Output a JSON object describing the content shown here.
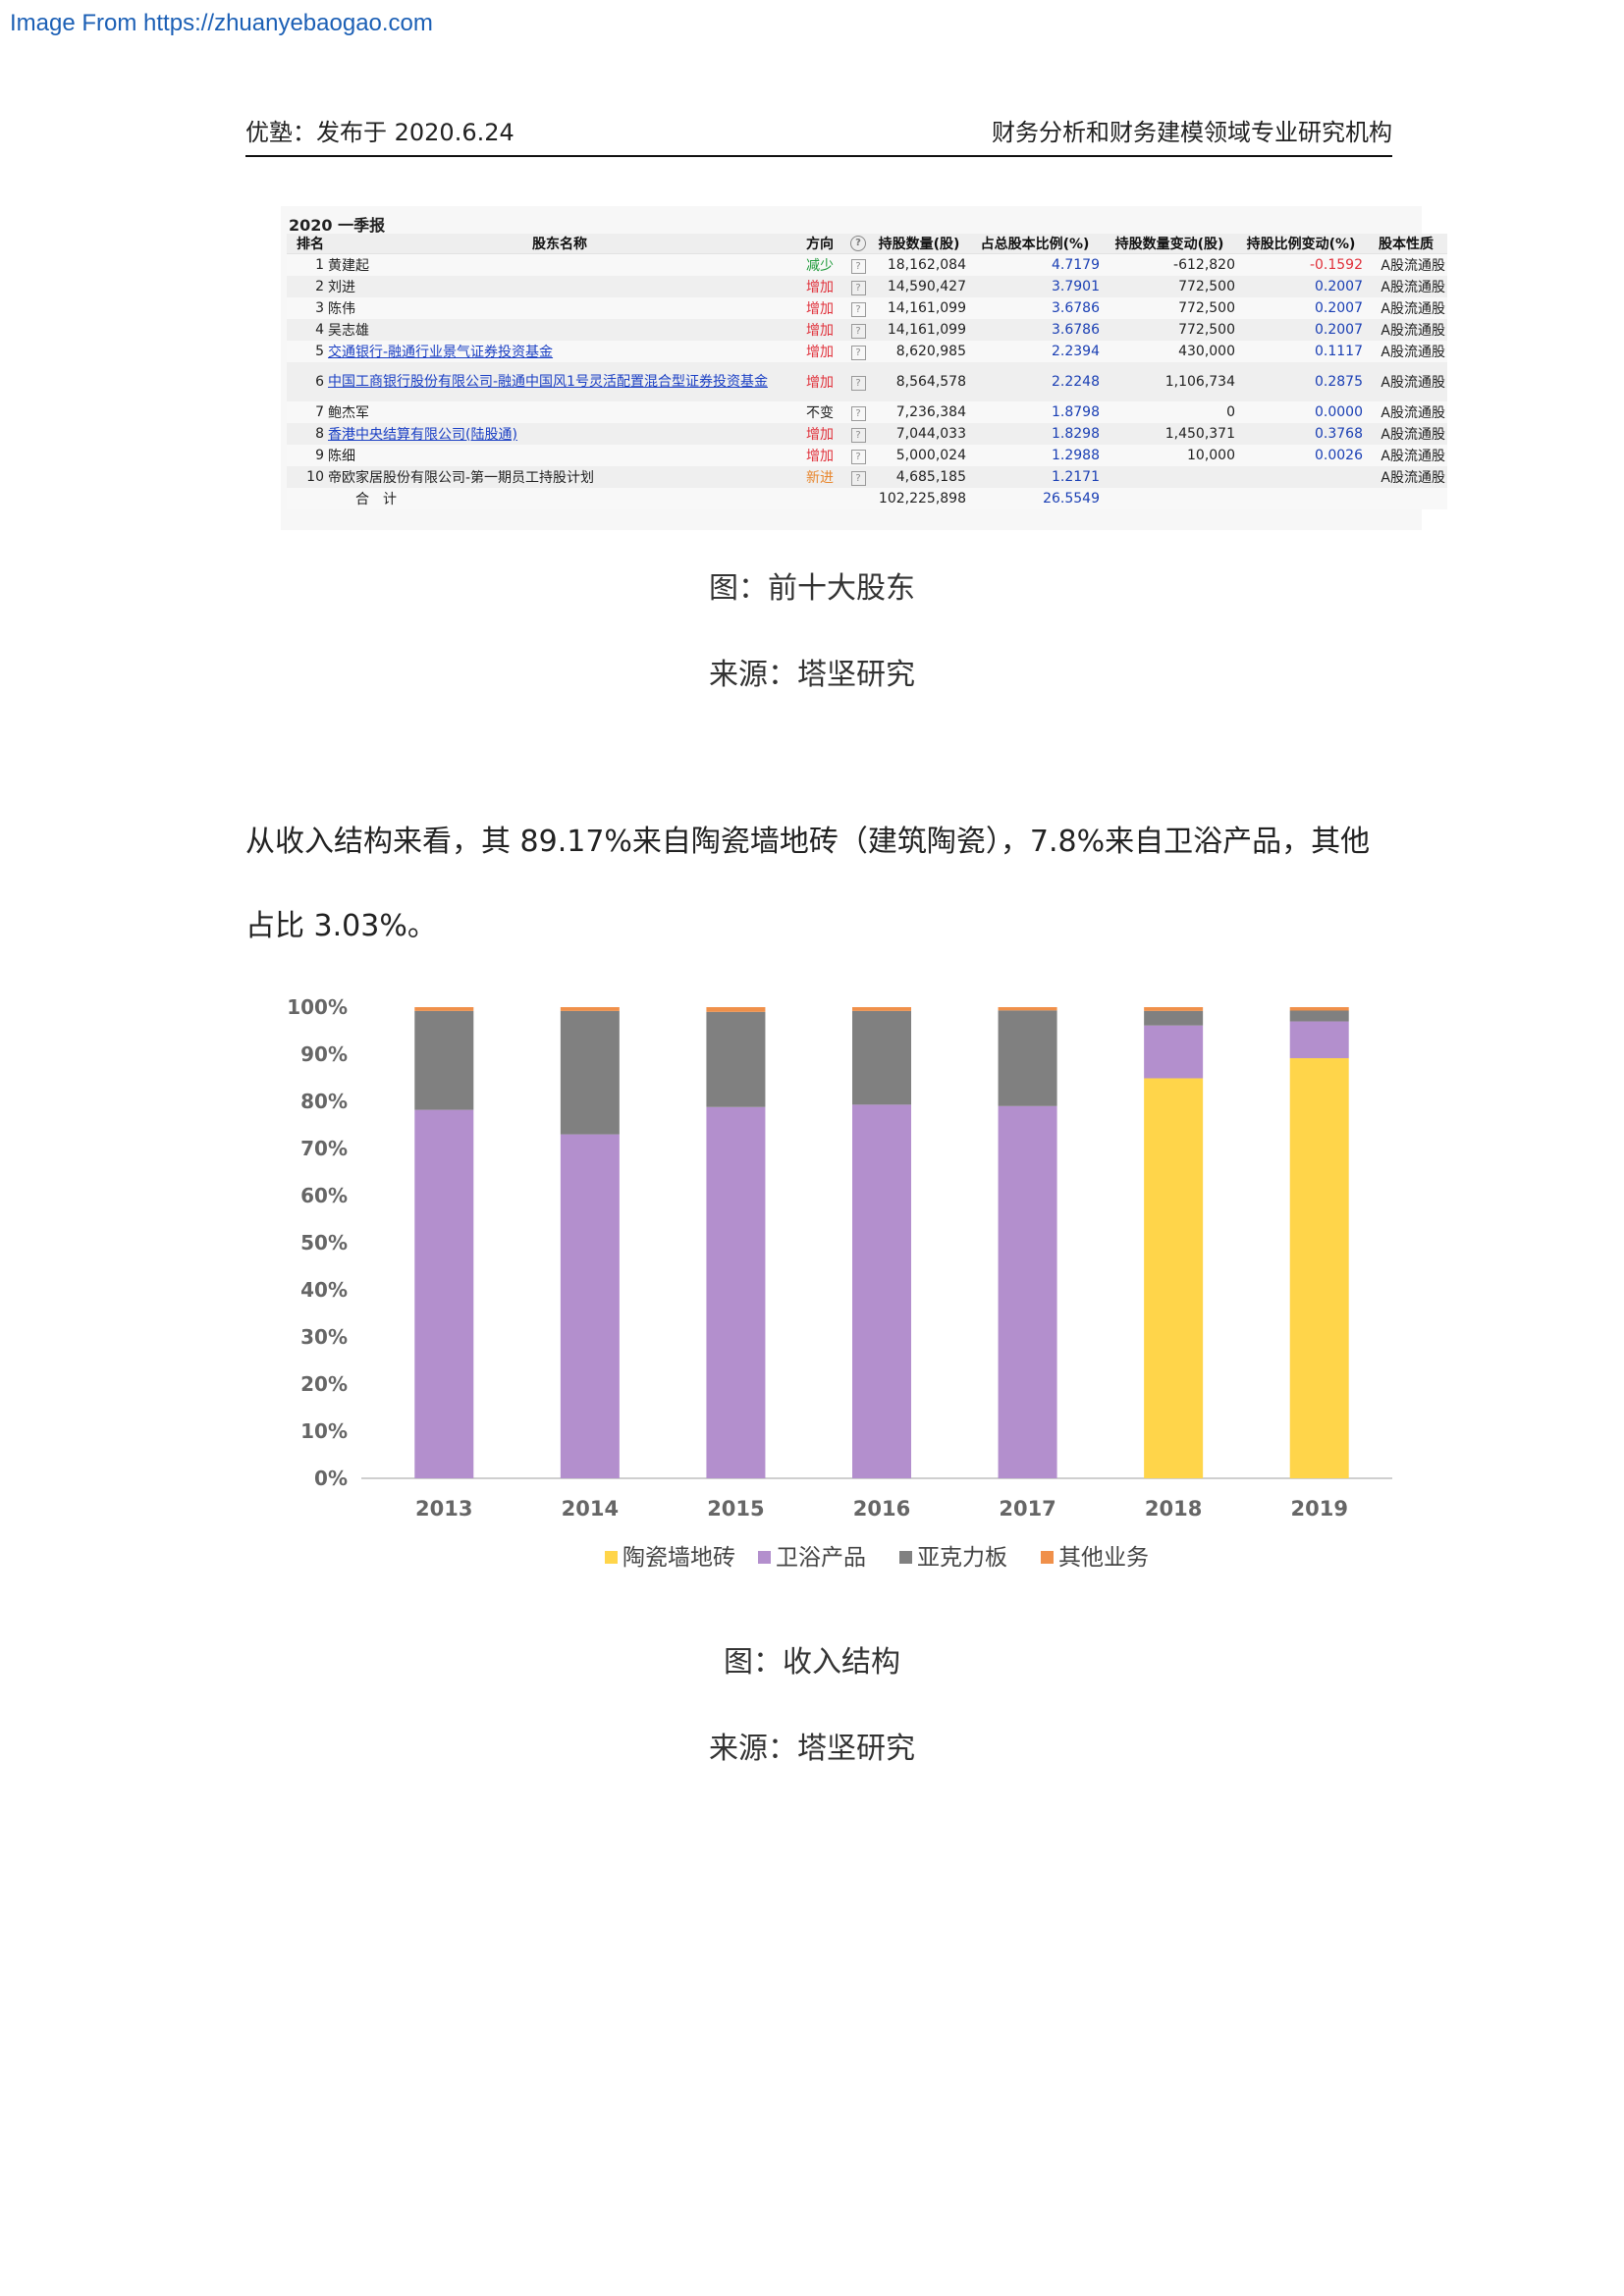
{
  "watermark": "Image From https://zhuanyebaogao.com",
  "header": {
    "left": "优塾：发布于 2020.6.24",
    "right": "财务分析和财务建模领域专业研究机构"
  },
  "shareholders": {
    "title": "2020 一季报",
    "columns": {
      "rank": "排名",
      "name": "股东名称",
      "direction": "方向",
      "holding": "持股数量(股)",
      "pct": "占总股本比例(%)",
      "change": "持股数量变动(股)",
      "change_pct": "持股比例变动(%)",
      "type": "股本性质"
    },
    "rows": [
      {
        "rank": "1",
        "name": "黄建起",
        "direction": "减少",
        "holding": "18,162,084",
        "pct": "4.7179",
        "change": "-612,820",
        "change_pct": "-0.1592",
        "type": "A股流通股"
      },
      {
        "rank": "2",
        "name": "刘进",
        "direction": "增加",
        "holding": "14,590,427",
        "pct": "3.7901",
        "change": "772,500",
        "change_pct": "0.2007",
        "type": "A股流通股"
      },
      {
        "rank": "3",
        "name": "陈伟",
        "direction": "增加",
        "holding": "14,161,099",
        "pct": "3.6786",
        "change": "772,500",
        "change_pct": "0.2007",
        "type": "A股流通股"
      },
      {
        "rank": "4",
        "name": "吴志雄",
        "direction": "增加",
        "holding": "14,161,099",
        "pct": "3.6786",
        "change": "772,500",
        "change_pct": "0.2007",
        "type": "A股流通股"
      },
      {
        "rank": "5",
        "name": "交通银行-融通行业景气证券投资基金",
        "direction": "增加",
        "holding": "8,620,985",
        "pct": "2.2394",
        "change": "430,000",
        "change_pct": "0.1117",
        "type": "A股流通股"
      },
      {
        "rank": "6",
        "name": "中国工商银行股份有限公司-融通中国风1号灵活配置混合型证券投资基金",
        "direction": "增加",
        "holding": "8,564,578",
        "pct": "2.2248",
        "change": "1,106,734",
        "change_pct": "0.2875",
        "type": "A股流通股"
      },
      {
        "rank": "7",
        "name": "鲍杰军",
        "direction": "不变",
        "holding": "7,236,384",
        "pct": "1.8798",
        "change": "0",
        "change_pct": "0.0000",
        "type": "A股流通股"
      },
      {
        "rank": "8",
        "name": "香港中央结算有限公司(陆股通)",
        "direction": "增加",
        "holding": "7,044,033",
        "pct": "1.8298",
        "change": "1,450,371",
        "change_pct": "0.3768",
        "type": "A股流通股"
      },
      {
        "rank": "9",
        "name": "陈细",
        "direction": "增加",
        "holding": "5,000,024",
        "pct": "1.2988",
        "change": "10,000",
        "change_pct": "0.0026",
        "type": "A股流通股"
      },
      {
        "rank": "10",
        "name": "帝欧家居股份有限公司-第一期员工持股计划",
        "direction": "新进",
        "holding": "4,685,185",
        "pct": "1.2171",
        "change": "",
        "change_pct": "",
        "type": "A股流通股"
      }
    ],
    "total": {
      "label": "合　计",
      "holding": "102,225,898",
      "pct": "26.5549"
    },
    "help_glyph": "?"
  },
  "captions": {
    "fig1": "图：前十大股东",
    "src1": "来源：塔坚研究",
    "fig2": "图：收入结构",
    "src2": "来源：塔坚研究"
  },
  "paragraph": {
    "line1": "从收入结构来看，其 89.17%来自陶瓷墙地砖（建筑陶瓷），7.8%来自卫浴产品，其他",
    "line2": "占比 3.03%。"
  },
  "chart_data": {
    "type": "bar",
    "stacked": true,
    "categories": [
      "2013",
      "2014",
      "2015",
      "2016",
      "2017",
      "2018",
      "2019"
    ],
    "series": [
      {
        "name": "陶瓷墙地砖",
        "color": "#ffd54a",
        "values": [
          0,
          0,
          0,
          0,
          0,
          84.9,
          89.17
        ]
      },
      {
        "name": "卫浴产品",
        "color": "#b38fcd",
        "values": [
          78.2,
          73.0,
          78.8,
          79.3,
          79.0,
          11.2,
          7.8
        ]
      },
      {
        "name": "亚克力板",
        "color": "#808080",
        "values": [
          21.0,
          26.2,
          20.2,
          19.9,
          20.3,
          3.1,
          2.3
        ]
      },
      {
        "name": "其他业务",
        "color": "#f0904a",
        "values": [
          0.8,
          0.8,
          1.0,
          0.8,
          0.7,
          0.8,
          0.73
        ]
      }
    ],
    "ylim": [
      0,
      100
    ],
    "yticks": [
      "0%",
      "10%",
      "20%",
      "30%",
      "40%",
      "50%",
      "60%",
      "70%",
      "80%",
      "90%",
      "100%"
    ],
    "legend_position": "bottom",
    "grid": false
  }
}
